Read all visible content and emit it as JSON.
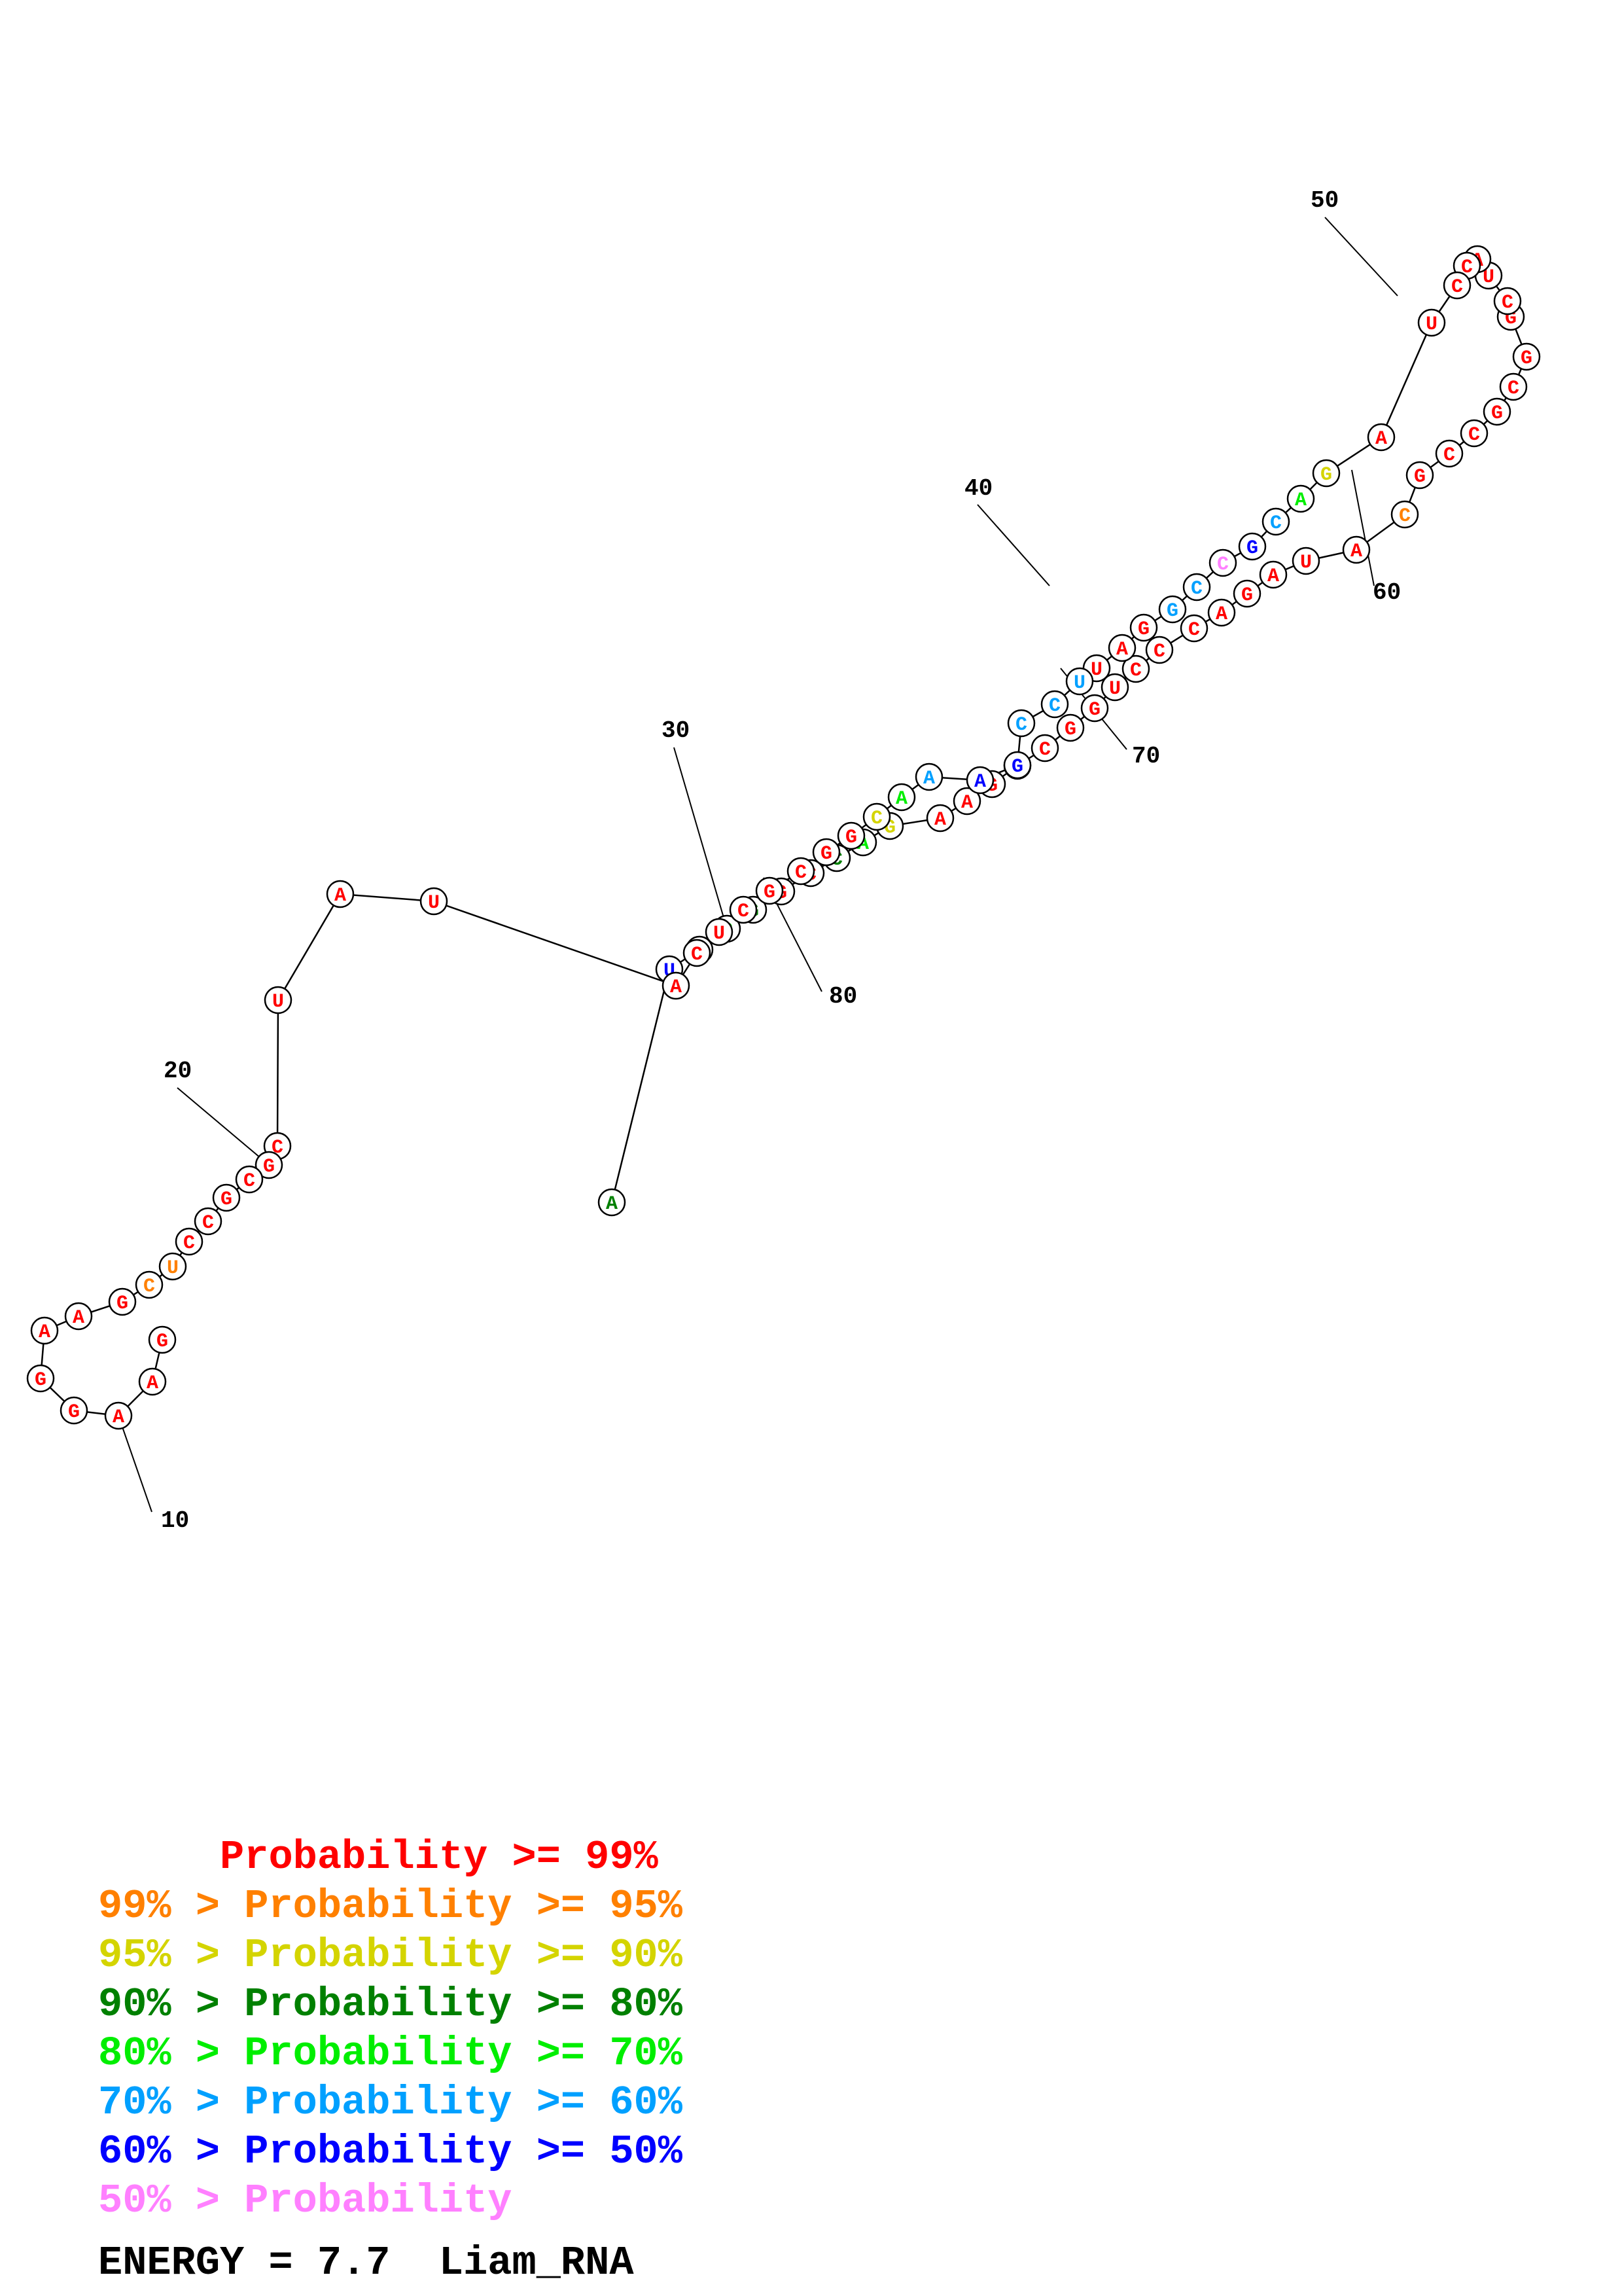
{
  "sequence": "AUGCGGCCAGAAGCCGGUCCCAGAUACGCCGCGGCUACCUAGACGCCGGAUUCCGAAACGGCGCUCAUAUCGCGCCUCGAAGGAAG",
  "colors": {
    "red": "#ff0000",
    "orange": "#ff8000",
    "yellow": "#d4d400",
    "darkgreen": "#008000",
    "green": "#00ee00",
    "cyan": "#00a0ff",
    "blue": "#0000ff",
    "pink": "#ff80ff",
    "black": "#000000"
  },
  "nucleotide_colors": [
    "darkgreen",
    "blue",
    "red",
    "green",
    "darkgreen",
    "red",
    "red",
    "darkgreen",
    "green",
    "yellow",
    "red",
    "red",
    "red",
    "red",
    "red",
    "red",
    "red",
    "red",
    "red",
    "red",
    "red",
    "red",
    "red",
    "red",
    "red",
    "red",
    "orange",
    "red",
    "red",
    "red",
    "red",
    "red",
    "red",
    "red",
    "red",
    "red",
    "red",
    "red",
    "red",
    "red",
    "red",
    "yellow",
    "green",
    "cyan",
    "blue",
    "pink",
    "cyan",
    "cyan",
    "red",
    "red",
    "red",
    "cyan",
    "cyan",
    "cyan",
    "blue",
    "blue",
    "cyan",
    "green",
    "yellow",
    "red",
    "red",
    "red",
    "red",
    "red",
    "red",
    "red",
    "red",
    "red",
    "red",
    "red",
    "red",
    "red",
    "red",
    "red",
    "red",
    "red",
    "orange",
    "orange",
    "red",
    "red",
    "red",
    "red",
    "red",
    "red",
    "red",
    "red",
    "red",
    "red",
    "red"
  ],
  "number_labels": [
    {
      "text": "10"
    },
    {
      "text": "20"
    },
    {
      "text": "30"
    },
    {
      "text": "40"
    },
    {
      "text": "50"
    },
    {
      "text": "60"
    },
    {
      "text": "70"
    },
    {
      "text": "80"
    }
  ],
  "legend": [
    {
      "text": "     Probability >= 99%",
      "color": "red"
    },
    {
      "text": "99% > Probability >= 95%",
      "color": "orange"
    },
    {
      "text": "95% > Probability >= 90%",
      "color": "yellow"
    },
    {
      "text": "90% > Probability >= 80%",
      "color": "darkgreen"
    },
    {
      "text": "80% > Probability >= 70%",
      "color": "green"
    },
    {
      "text": "70% > Probability >= 60%",
      "color": "cyan"
    },
    {
      "text": "60% > Probability >= 50%",
      "color": "blue"
    },
    {
      "text": "50% > Probability",
      "color": "pink"
    }
  ],
  "energy_text": "ENERGY = 7.7  Liam_RNA"
}
